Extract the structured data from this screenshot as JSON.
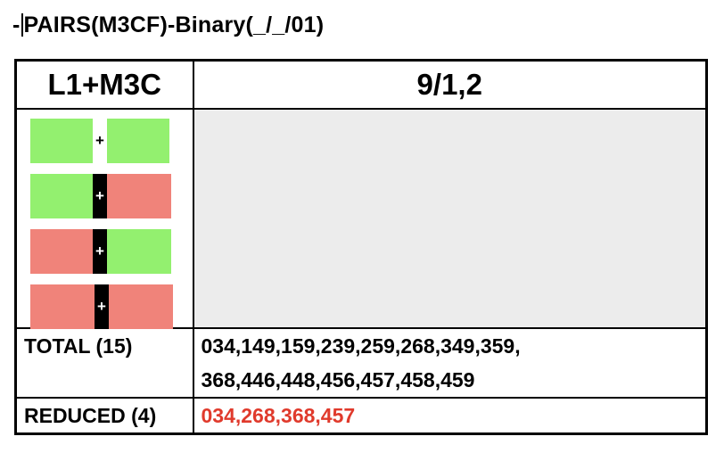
{
  "title": {
    "prefix": "-",
    "text": "PAIRS(M3CF)-Binary(_/_/01)"
  },
  "table": {
    "header": {
      "col1": "L1+M3C",
      "col2": "9/1,2"
    },
    "patterns": [
      {
        "left": "green",
        "sep": "white",
        "right": "green",
        "symbol": "+"
      },
      {
        "left": "green",
        "sep": "black",
        "right": "red",
        "symbol": "+"
      },
      {
        "left": "red",
        "sep": "black",
        "right": "green",
        "symbol": "+"
      },
      {
        "left": "red",
        "sep": "black",
        "right": "red",
        "symbol": "+"
      }
    ],
    "total": {
      "label": "TOTAL (15)",
      "line1": "034,149,159,239,259,268,349,359,",
      "line2": "368,446,448,456,457,458,459"
    },
    "reduced": {
      "label": "REDUCED (4)",
      "values": "034,268,368,457"
    }
  },
  "colors": {
    "green": "#93f06f",
    "red": "#f0837a",
    "reduced_text": "#e03a2c",
    "empty_cell": "#ececec"
  }
}
